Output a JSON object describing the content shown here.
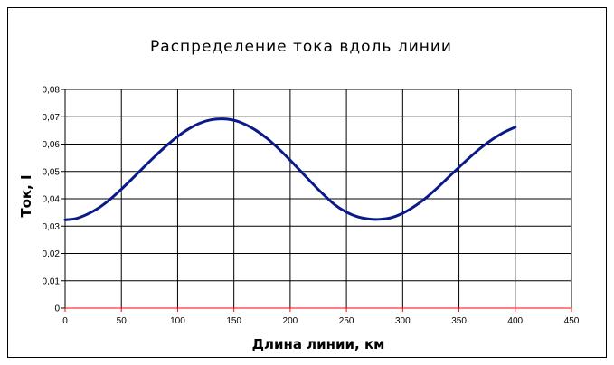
{
  "chart_data": {
    "type": "line",
    "title": "Распределение  тока   вдоль  линии",
    "xlabel": "Длина линии, км",
    "ylabel": "Ток, I",
    "xlim": [
      0,
      450
    ],
    "ylim": [
      0,
      0.08
    ],
    "x_ticks": [
      "0",
      "50",
      "100",
      "150",
      "200",
      "250",
      "300",
      "350",
      "400",
      "450"
    ],
    "y_ticks": [
      "0",
      "0,01",
      "0,02",
      "0,03",
      "0,04",
      "0,05",
      "0,06",
      "0,07",
      "0,08"
    ],
    "grid": true,
    "legend": "none",
    "series": [
      {
        "color": "#0a1a8a",
        "x": [
          0,
          10,
          20,
          30,
          40,
          50,
          60,
          70,
          80,
          90,
          100,
          110,
          120,
          130,
          140,
          150,
          160,
          170,
          180,
          190,
          200,
          210,
          220,
          230,
          240,
          250,
          260,
          270,
          280,
          290,
          300,
          310,
          320,
          330,
          340,
          350,
          360,
          370,
          380,
          390,
          400
        ],
        "values": [
          0.0323,
          0.0328,
          0.0344,
          0.0367,
          0.0398,
          0.0435,
          0.0475,
          0.0516,
          0.0556,
          0.0594,
          0.0628,
          0.0656,
          0.0677,
          0.0689,
          0.0692,
          0.0687,
          0.0672,
          0.0649,
          0.0619,
          0.0582,
          0.0541,
          0.0498,
          0.0455,
          0.0414,
          0.0377,
          0.0351,
          0.0334,
          0.0326,
          0.0325,
          0.0331,
          0.0347,
          0.0371,
          0.0401,
          0.0437,
          0.0476,
          0.0515,
          0.0553,
          0.0588,
          0.0618,
          0.0643,
          0.0662
        ]
      }
    ]
  }
}
